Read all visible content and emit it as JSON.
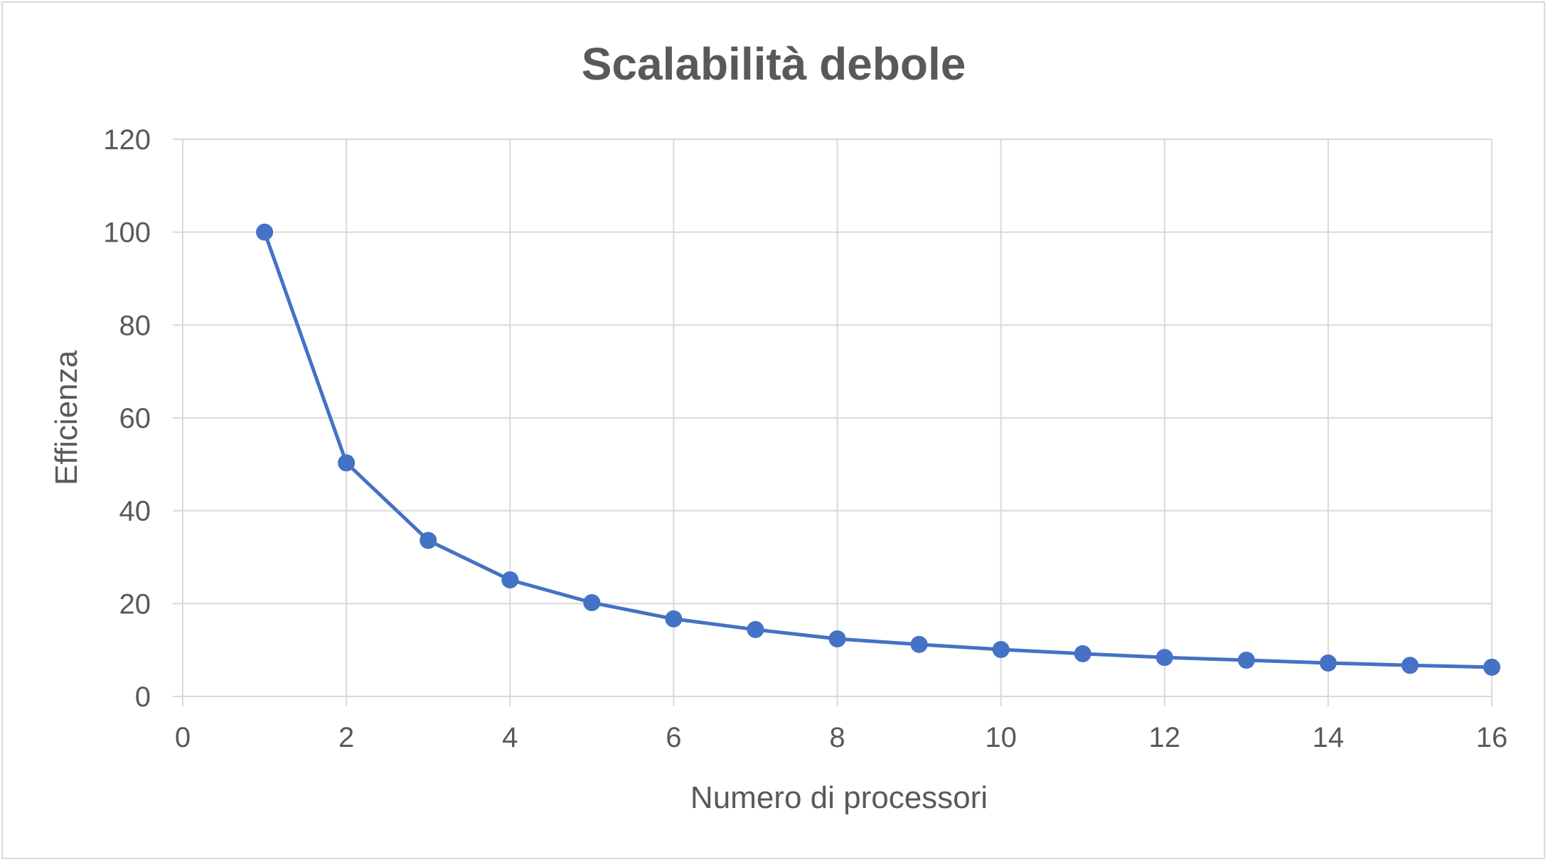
{
  "chart_data": {
    "type": "line",
    "title": "Scalabilità debole",
    "xlabel": "Numero di processori",
    "ylabel": "Efficienza",
    "xlim": [
      0,
      16
    ],
    "ylim": [
      0,
      120
    ],
    "x_ticks": [
      "0",
      "2",
      "4",
      "6",
      "8",
      "10",
      "12",
      "14",
      "16"
    ],
    "y_ticks": [
      "0",
      "20",
      "40",
      "60",
      "80",
      "100",
      "120"
    ],
    "grid": true,
    "legend": "none",
    "series": [
      {
        "x": [
          1,
          2,
          3,
          4,
          5,
          6,
          7,
          8,
          9,
          10,
          11,
          12,
          13,
          14,
          15,
          16
        ],
        "values": [
          100,
          50.3,
          33.6,
          25.1,
          20.2,
          16.7,
          14.4,
          12.4,
          11.2,
          10.1,
          9.2,
          8.4,
          7.8,
          7.2,
          6.7,
          6.3
        ]
      }
    ],
    "colors": {
      "line": "#4472C4",
      "grid": "#d9d9d9",
      "text": "#595959"
    }
  }
}
